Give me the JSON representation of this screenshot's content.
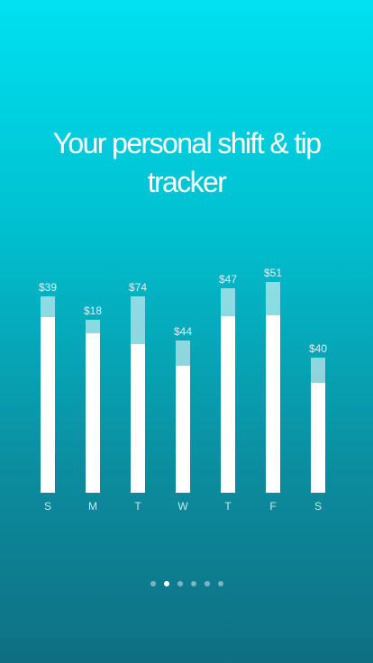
{
  "onboarding": {
    "headline": "Your personal shift & tip tracker",
    "page_indicator": {
      "total": 6,
      "active_index": 1
    }
  },
  "chart_data": {
    "type": "bar",
    "stacked": true,
    "categories": [
      "S",
      "M",
      "T",
      "W",
      "T",
      "F",
      "S"
    ],
    "value_labels": [
      "$39",
      "$18",
      "$74",
      "$44",
      "$47",
      "$51",
      "$40"
    ],
    "series": [
      {
        "values": [
          195,
          177,
          165,
          141,
          196,
          197,
          122
        ],
        "color": "#ffffff"
      },
      {
        "values": [
          23,
          15,
          53,
          28,
          31,
          37,
          28
        ],
        "color": "rgba(255,255,255,0.55)"
      }
    ],
    "grid": false,
    "legend": "none"
  }
}
